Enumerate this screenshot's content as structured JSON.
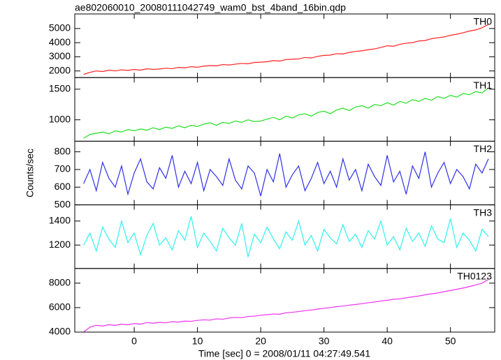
{
  "chart_data": {
    "type": "line",
    "title": "ae802060010_20080111042749_wam0_bst_4band_16bin.qdp",
    "xlabel": "Time [sec] 0 = 2008/01/11 04:27:49.541",
    "ylabel": "Counts/sec",
    "x": [
      -8,
      -7,
      -6,
      -5,
      -4,
      -3,
      -2,
      -1,
      0,
      1,
      2,
      3,
      4,
      5,
      6,
      7,
      8,
      9,
      10,
      11,
      12,
      13,
      14,
      15,
      16,
      17,
      18,
      19,
      20,
      21,
      22,
      23,
      24,
      25,
      26,
      27,
      28,
      29,
      30,
      31,
      32,
      33,
      34,
      35,
      36,
      37,
      38,
      39,
      40,
      41,
      42,
      43,
      44,
      45,
      46,
      47,
      48,
      49,
      50,
      51,
      52,
      53,
      54,
      55,
      56
    ],
    "xlim": [
      -9.4,
      57
    ],
    "xticks": [
      0,
      10,
      20,
      30,
      40,
      50
    ],
    "series": [
      {
        "name": "TH0",
        "color": "#ff2020",
        "ylim": [
          1530,
          6030
        ],
        "yticks": [
          2000,
          3000,
          4000,
          5000
        ],
        "values": [
          1750,
          1900,
          2000,
          1960,
          2050,
          2000,
          2080,
          2040,
          2100,
          2060,
          2150,
          2110,
          2140,
          2190,
          2160,
          2250,
          2220,
          2300,
          2260,
          2340,
          2380,
          2360,
          2450,
          2420,
          2480,
          2530,
          2510,
          2600,
          2620,
          2650,
          2730,
          2700,
          2800,
          2830,
          2850,
          2950,
          2920,
          3030,
          3100,
          3120,
          3220,
          3200,
          3310,
          3380,
          3420,
          3500,
          3560,
          3660,
          3780,
          3750,
          3880,
          3960,
          4000,
          4120,
          4150,
          4280,
          4350,
          4400,
          4520,
          4600,
          4700,
          4820,
          4900,
          5050,
          5300
        ]
      },
      {
        "name": "TH1",
        "color": "#20e020",
        "ylim": [
          650,
          1690
        ],
        "yticks": [
          1000,
          1500
        ],
        "values": [
          700,
          760,
          780,
          800,
          770,
          820,
          800,
          840,
          820,
          850,
          830,
          870,
          840,
          880,
          860,
          900,
          870,
          910,
          890,
          930,
          950,
          910,
          960,
          940,
          980,
          960,
          1000,
          970,
          980,
          1010,
          1040,
          1000,
          1060,
          1030,
          1080,
          1100,
          1060,
          1120,
          1140,
          1100,
          1160,
          1190,
          1150,
          1210,
          1230,
          1190,
          1250,
          1230,
          1280,
          1240,
          1300,
          1270,
          1330,
          1300,
          1350,
          1320,
          1380,
          1350,
          1400,
          1370,
          1430,
          1410,
          1460,
          1440,
          1520
        ]
      },
      {
        "name": "TH2",
        "color": "#3030e8",
        "ylim": [
          500,
          860
        ],
        "yticks": [
          500,
          600,
          700,
          800
        ],
        "values": [
          620,
          700,
          580,
          740,
          650,
          600,
          720,
          560,
          680,
          760,
          630,
          590,
          710,
          650,
          780,
          600,
          690,
          620,
          740,
          580,
          700,
          660,
          610,
          760,
          640,
          590,
          720,
          680,
          550,
          700,
          630,
          790,
          600,
          670,
          720,
          580,
          650,
          740,
          620,
          690,
          600,
          760,
          640,
          700,
          580,
          730,
          660,
          610,
          780,
          630,
          690,
          560,
          720,
          650,
          800,
          600,
          680,
          740,
          620,
          700,
          660,
          590,
          730,
          680,
          760
        ]
      },
      {
        "name": "TH3",
        "color": "#30f0f0",
        "ylim": [
          1005,
          1535
        ],
        "yticks": [
          1200,
          1400
        ],
        "values": [
          1200,
          1300,
          1150,
          1350,
          1250,
          1180,
          1400,
          1220,
          1300,
          1120,
          1280,
          1380,
          1200,
          1260,
          1160,
          1320,
          1240,
          1440,
          1180,
          1300,
          1230,
          1150,
          1340,
          1260,
          1200,
          1380,
          1100,
          1290,
          1220,
          1350,
          1250,
          1170,
          1310,
          1240,
          1400,
          1200,
          1280,
          1150,
          1330,
          1260,
          1210,
          1370,
          1230,
          1290,
          1180,
          1320,
          1250,
          1400,
          1200,
          1270,
          1160,
          1340,
          1230,
          1300,
          1190,
          1360,
          1250,
          1220,
          1420,
          1180,
          1300,
          1240,
          1150,
          1330,
          1270
        ]
      },
      {
        "name": "TH0123",
        "color": "#f030f0",
        "ylim": [
          4000,
          9200
        ],
        "yticks": [
          4000,
          6000,
          8000
        ],
        "values": [
          4000,
          4400,
          4550,
          4500,
          4600,
          4550,
          4650,
          4600,
          4700,
          4650,
          4780,
          4720,
          4800,
          4760,
          4850,
          4820,
          4900,
          4880,
          4960,
          5000,
          4980,
          5080,
          5050,
          5150,
          5200,
          5180,
          5280,
          5300,
          5380,
          5420,
          5480,
          5460,
          5580,
          5620,
          5680,
          5750,
          5800,
          5880,
          5950,
          6000,
          6080,
          6120,
          6200,
          6260,
          6320,
          6400,
          6460,
          6540,
          6600,
          6680,
          6720,
          6800,
          6880,
          6950,
          7050,
          7120,
          7200,
          7300,
          7400,
          7500,
          7600,
          7720,
          7850,
          8000,
          8300
        ]
      }
    ]
  }
}
